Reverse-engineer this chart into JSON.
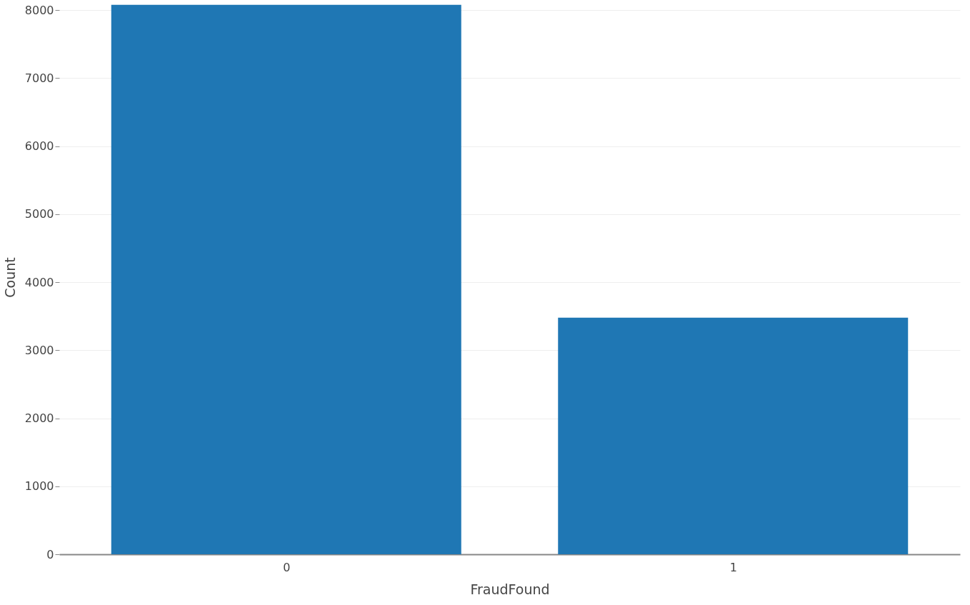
{
  "chart_data": {
    "type": "bar",
    "xlabel": "FraudFound",
    "ylabel": "Count",
    "categories": [
      "0",
      "1"
    ],
    "values": [
      8080,
      3480
    ],
    "color": "#1f77b4",
    "ylim": [
      0,
      8150
    ],
    "yticks": [
      0,
      1000,
      2000,
      3000,
      4000,
      5000,
      6000,
      7000,
      8000
    ],
    "grid": "y"
  }
}
